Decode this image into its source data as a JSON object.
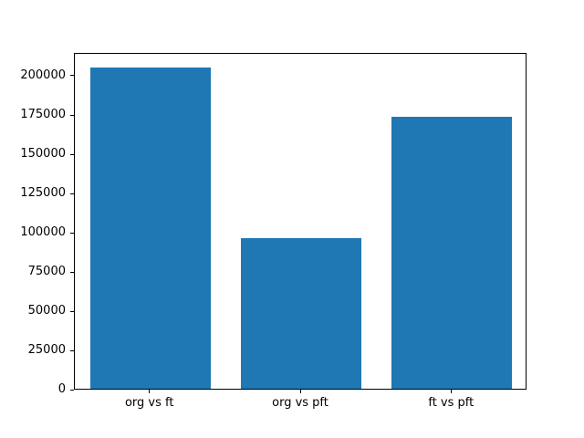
{
  "chart_data": {
    "type": "bar",
    "title": "",
    "xlabel": "",
    "ylabel": "",
    "categories": [
      "org vs ft",
      "org vs pft",
      "ft vs pft"
    ],
    "values": [
      204500,
      96000,
      173000
    ],
    "yticks": [
      0,
      25000,
      50000,
      75000,
      100000,
      125000,
      150000,
      175000,
      200000
    ],
    "ylim": [
      0,
      214500
    ],
    "bar_color": "#1f77b4",
    "axis_color": "#000000",
    "background_color": "#ffffff",
    "grid": false,
    "legend": "none",
    "bar_width_fraction": 0.8
  }
}
